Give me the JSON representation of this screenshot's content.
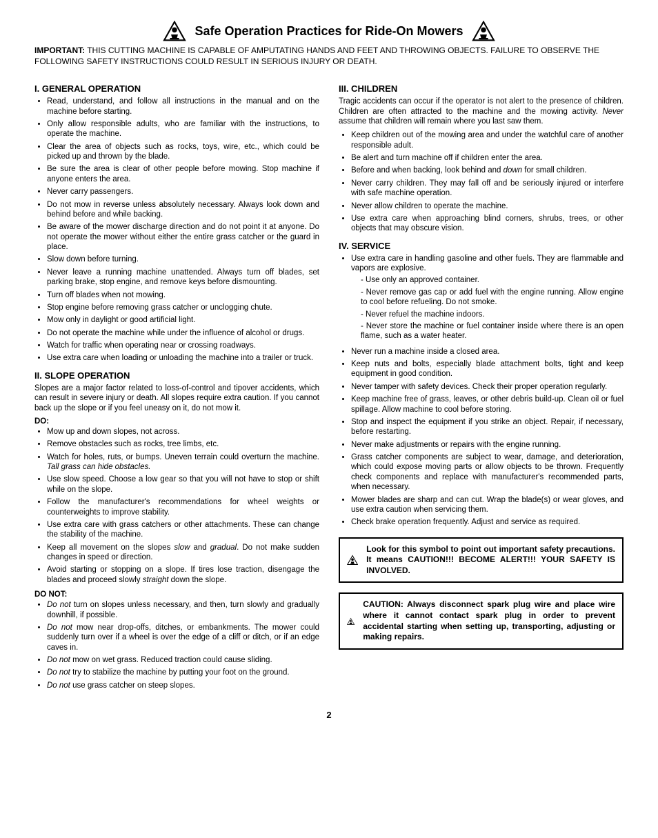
{
  "title": "Safe Operation Practices for Ride-On Mowers",
  "important_label": "IMPORTANT:",
  "important_text": " THIS CUTTING MACHINE IS CAPABLE OF AMPUTATING HANDS AND FEET AND THROWING OBJECTS. FAILURE TO OBSERVE THE FOLLOWING SAFETY INSTRUCTIONS COULD RESULT IN SERIOUS INJURY OR DEATH.",
  "s1": {
    "heading": "I.   GENERAL OPERATION",
    "items": [
      "Read, understand, and follow all instructions in the manual and on the machine before starting.",
      "Only allow responsible adults, who are familiar with the instructions, to operate the machine.",
      "Clear the area of objects such as rocks, toys, wire, etc., which could be picked up and thrown by the blade.",
      "Be sure the area is clear of other people before mowing. Stop machine if anyone enters the area.",
      "Never carry passengers.",
      "Do not mow in reverse unless absolutely necessary. Always look down and behind before and while backing.",
      "Be aware of the mower discharge direction and do not point it at anyone. Do not operate the mower without either the entire grass catcher or the guard in place.",
      "Slow down before turning.",
      "Never leave a running machine unattended. Always turn off blades, set parking brake, stop engine, and remove keys before dismounting.",
      "Turn off blades when not mowing.",
      "Stop engine before removing grass catcher or unclogging chute.",
      "Mow only in daylight or good artificial light.",
      "Do not operate the machine while under the influence of alcohol or drugs.",
      "Watch for traffic when operating near or crossing roadways.",
      "Use extra care when loading or unloading the machine into a trailer or truck."
    ]
  },
  "s2": {
    "heading": "II.   SLOPE OPERATION",
    "intro": "Slopes are a major factor related to loss-of-control and tipover accidents, which can result in severe injury or death. All slopes require extra caution. If you cannot back up the slope or if you feel uneasy on it, do not mow it.",
    "do_label": "DO:",
    "do_items": [
      "Mow up and down slopes, not across.",
      "Remove obstacles such as rocks, tree limbs, etc.",
      "Watch for holes, ruts, or bumps. Uneven terrain could overturn the machine. <span class='em'>Tall grass can hide obstacles.</span>",
      "Use slow speed. Choose a low gear so that you will not have to stop or shift while on the slope.",
      "Follow the manufacturer's recommendations for wheel weights or counterweights to improve stability.",
      "Use extra care with grass catchers or other attachments. These can change the stability of the machine.",
      "Keep all movement on the slopes <span class='em'>slow</span> and <span class='em'>gradual</span>. Do not make sudden changes in speed or direction.",
      "Avoid starting or stopping on a slope. If tires lose traction, disengage the blades and proceed slowly <span class='em'>straight</span> down the slope."
    ],
    "donot_label": "DO NOT:",
    "donot_items": [
      "<span class='em'>Do not</span> turn on slopes unless necessary, and then, turn slowly and gradually downhill, if possible.",
      "<span class='em'>Do not</span> mow near drop-offs, ditches, or embankments. The mower could suddenly turn over if a wheel is over the edge of a cliff or ditch, or if an edge caves in.",
      "<span class='em'>Do not</span> mow on wet grass. Reduced traction could cause sliding.",
      "<span class='em'>Do not</span> try to stabilize the machine by putting your foot on the ground.",
      "<span class='em'>Do not</span> use grass catcher on steep slopes."
    ]
  },
  "s3": {
    "heading": "III.  CHILDREN",
    "intro": "Tragic accidents can occur if the operator is not alert to the presence of children. Children are often attracted to the machine and the mowing activity. <span class='em'>Never</span> assume that children will remain where you last saw them.",
    "items": [
      "Keep children out of the mowing area and under the watchful care of another responsible adult.",
      "Be alert and turn machine off if children enter the area.",
      "Before and when backing, look behind and <span class='em'>down</span> for small children.",
      "Never carry children. They may fall off and be seriously injured or interfere with safe machine operation.",
      "Never allow children to operate the machine.",
      "Use extra care when approaching blind corners, shrubs, trees, or other objects that may obscure vision."
    ]
  },
  "s4": {
    "heading": "IV.  SERVICE",
    "fuel_lead": "Use extra care in handling gasoline and other fuels. They are flammable and vapors are explosive.",
    "fuel_sub": [
      "Use only an approved container.",
      "Never remove gas cap or add fuel with the engine running. Allow engine to cool before refueling. Do not smoke.",
      "Never refuel the machine indoors.",
      "Never store the machine or fuel container inside where there is an open flame, such as a water heater."
    ],
    "items": [
      "Never run a machine inside a closed area.",
      "Keep nuts and bolts, especially blade attachment bolts, tight and keep equipment in good condition.",
      "Never tamper with safety devices. Check their proper operation regularly.",
      "Keep machine free of grass, leaves, or other debris build-up. Clean oil or fuel spillage. Allow machine to cool before storing.",
      "Stop and inspect the equipment if you strike an object. Repair, if necessary, before restarting.",
      "Never make adjustments or repairs with the engine running.",
      "Grass catcher components are subject to wear, damage, and deterioration, which could expose moving parts or allow objects to be thrown. Frequently check components and replace with manufacturer's recommended parts, when necessary.",
      "Mower blades are sharp and can cut. Wrap the blade(s) or wear gloves, and use extra caution when servicing them.",
      "Check brake operation frequently. Adjust and service as required."
    ]
  },
  "caution1": "Look for this symbol to point out important safety precautions. It means CAUTION!!! BECOME ALERT!!! YOUR SAFETY IS INVOLVED.",
  "caution2": "CAUTION: Always disconnect spark plug wire and place wire where it cannot contact spark plug in order to prevent accidental starting when setting up, transporting, adjusting or making repairs.",
  "page": "2"
}
